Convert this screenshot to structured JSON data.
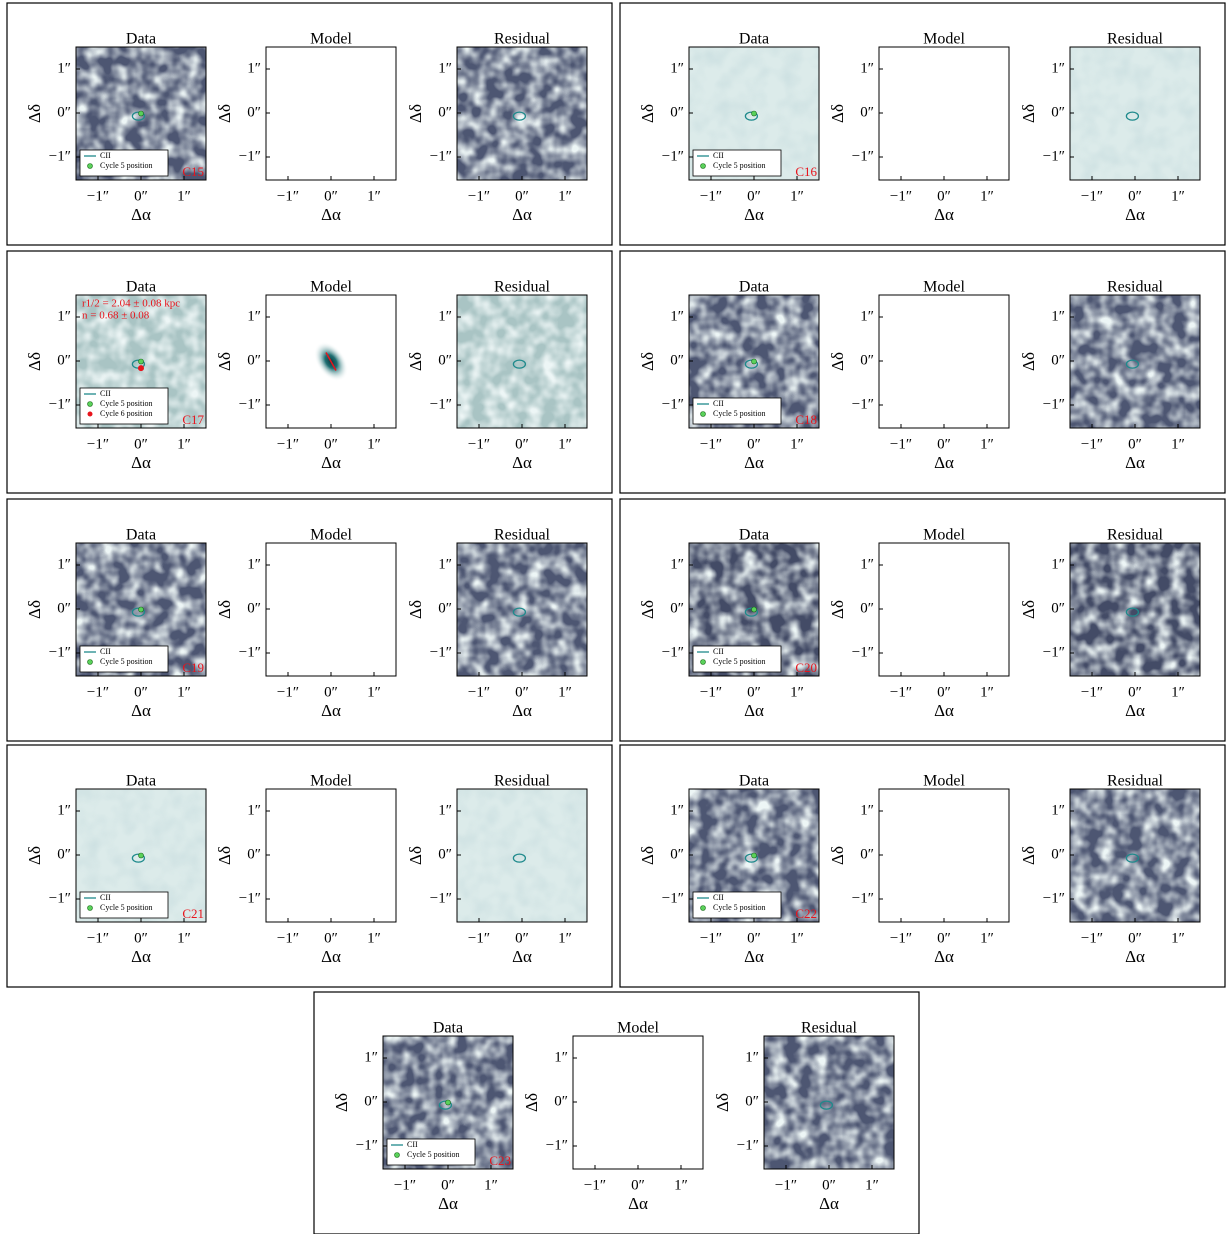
{
  "titles": [
    "Data",
    "Model",
    "Residual"
  ],
  "ticks": [
    "−1″",
    "0″",
    "1″"
  ],
  "xlabel": "Δα",
  "ylabel": "Δδ",
  "panels": [
    {
      "label": "C15",
      "legend": [
        "CII",
        "Cycle 5 position"
      ],
      "map_color": "#4d5672"
    },
    {
      "label": "C16",
      "legend": [
        "CII",
        "Cycle 5 position"
      ],
      "map_color": "#dcebea"
    },
    {
      "label": "C17",
      "legend": [
        "CII",
        "Cycle 5 position",
        "Cycle 6 position"
      ],
      "map_color": "#a9c4c4",
      "annotations": [
        "r1/2 = 2.04 ± 0.08 kpc",
        "n = 0.68 ± 0.08"
      ],
      "model_color": "#1f6f73"
    },
    {
      "label": "C18",
      "legend": [
        "CII",
        "Cycle 5 position"
      ],
      "map_color": "#4d5672"
    },
    {
      "label": "C19",
      "legend": [
        "CII",
        "Cycle 5 position"
      ],
      "map_color": "#4d5672"
    },
    {
      "label": "C20",
      "legend": [
        "CII",
        "Cycle 5 position"
      ],
      "map_color": "#434b66"
    },
    {
      "label": "C21",
      "legend": [
        "CII",
        "Cycle 5 position"
      ],
      "map_color": "#dcebea"
    },
    {
      "label": "C22",
      "legend": [
        "CII",
        "Cycle 5 position"
      ],
      "map_color": "#4d5672"
    },
    {
      "label": "C23",
      "legend": [
        "CII",
        "Cycle 5 position"
      ],
      "map_color": "#4d5672"
    }
  ]
}
